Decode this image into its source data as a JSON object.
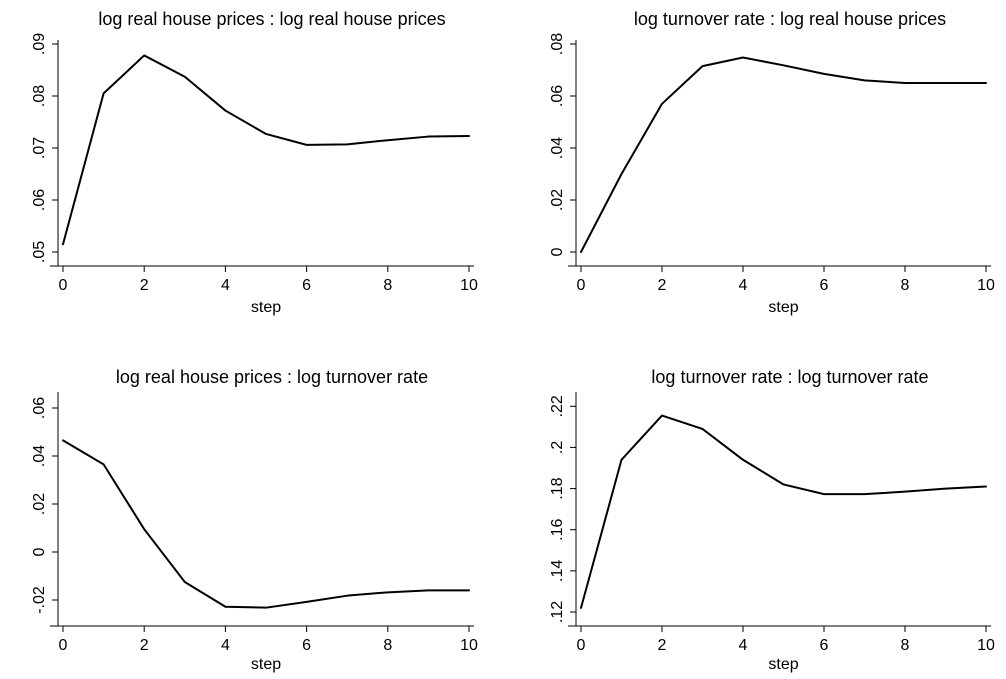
{
  "chart_data": [
    {
      "type": "line",
      "title": "log real house prices : log real house prices",
      "xlabel": "step",
      "ylabel": "",
      "x": [
        0,
        1,
        2,
        3,
        4,
        5,
        6,
        7,
        8,
        9,
        10
      ],
      "series": [
        {
          "values": [
            0.0515,
            0.0805,
            0.0878,
            0.0837,
            0.0772,
            0.0727,
            0.0706,
            0.0707,
            0.0715,
            0.0722,
            0.0723
          ]
        }
      ],
      "xlim": [
        0,
        10
      ],
      "ylim": [
        0.05,
        0.09
      ],
      "xticks": [
        0,
        2,
        4,
        6,
        8,
        10
      ],
      "xtick_labels": [
        "0",
        "2",
        "4",
        "6",
        "8",
        "10"
      ],
      "yticks": [
        0.05,
        0.06,
        0.07,
        0.08,
        0.09
      ],
      "ytick_labels": [
        ".05",
        ".06",
        ".07",
        ".08",
        ".09"
      ],
      "grid": false,
      "line_color": "#000000"
    },
    {
      "type": "line",
      "title": "log turnover rate : log real house prices",
      "xlabel": "step",
      "ylabel": "",
      "x": [
        0,
        1,
        2,
        3,
        4,
        5,
        6,
        7,
        8,
        9,
        10
      ],
      "series": [
        {
          "values": [
            0.0,
            0.03,
            0.057,
            0.0715,
            0.0748,
            0.0718,
            0.0685,
            0.066,
            0.065,
            0.065,
            0.065
          ]
        }
      ],
      "xlim": [
        0,
        10
      ],
      "ylim": [
        0,
        0.08
      ],
      "xticks": [
        0,
        2,
        4,
        6,
        8,
        10
      ],
      "xtick_labels": [
        "0",
        "2",
        "4",
        "6",
        "8",
        "10"
      ],
      "yticks": [
        0,
        0.02,
        0.04,
        0.06,
        0.08
      ],
      "ytick_labels": [
        "0",
        ".02",
        ".04",
        ".06",
        ".08"
      ],
      "grid": false,
      "line_color": "#000000"
    },
    {
      "type": "line",
      "title": "log real house prices : log turnover rate",
      "xlabel": "step",
      "ylabel": "",
      "x": [
        0,
        1,
        2,
        3,
        4,
        5,
        6,
        7,
        8,
        9,
        10
      ],
      "series": [
        {
          "values": [
            0.0465,
            0.0365,
            0.0095,
            -0.0125,
            -0.0228,
            -0.0232,
            -0.0208,
            -0.0182,
            -0.0168,
            -0.016,
            -0.016
          ]
        }
      ],
      "xlim": [
        0,
        10
      ],
      "ylim": [
        -0.025,
        0.065
      ],
      "xticks": [
        0,
        2,
        4,
        6,
        8,
        10
      ],
      "xtick_labels": [
        "0",
        "2",
        "4",
        "6",
        "8",
        "10"
      ],
      "yticks": [
        -0.02,
        0,
        0.02,
        0.04,
        0.06
      ],
      "ytick_labels": [
        "-.02",
        "0",
        ".02",
        ".04",
        ".06"
      ],
      "grid": false,
      "line_color": "#000000"
    },
    {
      "type": "line",
      "title": "log turnover rate : log turnover rate",
      "xlabel": "step",
      "ylabel": "",
      "x": [
        0,
        1,
        2,
        3,
        4,
        5,
        6,
        7,
        8,
        9,
        10
      ],
      "series": [
        {
          "values": [
            0.122,
            0.194,
            0.2155,
            0.209,
            0.194,
            0.182,
            0.1773,
            0.1773,
            0.1785,
            0.18,
            0.181
          ]
        }
      ],
      "xlim": [
        0,
        10
      ],
      "ylim": [
        0.12,
        0.225
      ],
      "xticks": [
        0,
        2,
        4,
        6,
        8,
        10
      ],
      "xtick_labels": [
        "0",
        "2",
        "4",
        "6",
        "8",
        "10"
      ],
      "yticks": [
        0.12,
        0.14,
        0.16,
        0.18,
        0.2,
        0.22
      ],
      "ytick_labels": [
        ".12",
        ".14",
        ".16",
        ".18",
        ".2",
        ".22"
      ],
      "grid": false,
      "line_color": "#000000"
    }
  ]
}
